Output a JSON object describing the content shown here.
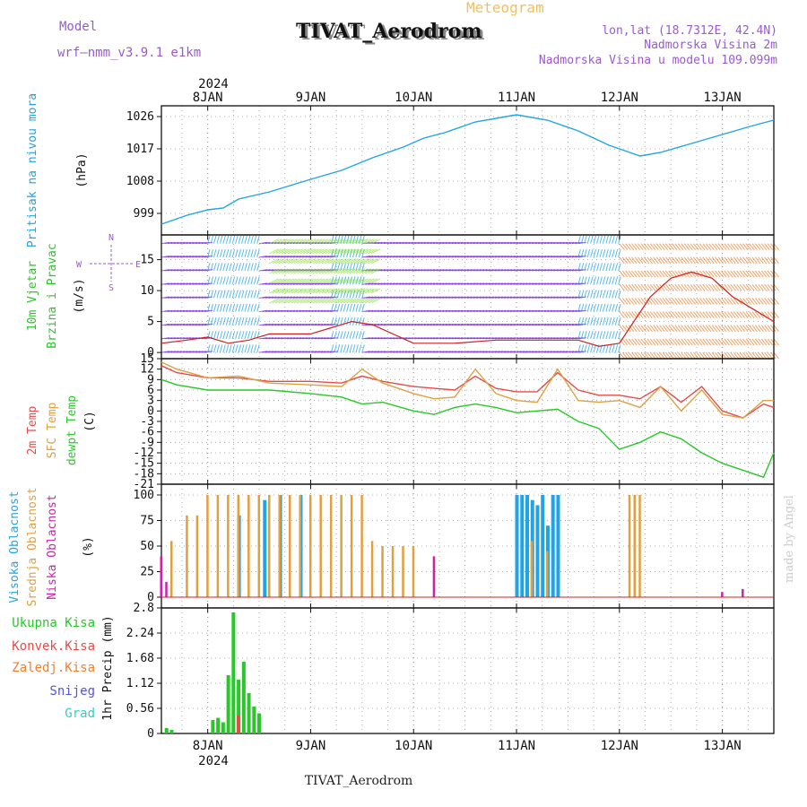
{
  "header": {
    "model_label": "Model",
    "model_value": "wrf–nmm_v3.9.1 e1km",
    "title": "TIVAT_Aerodrom",
    "meteogram": "Meteogram",
    "lonlat": "lon,lat (18.7312E, 42.4N)",
    "elevation": "Nadmorska Visina 2m",
    "model_elevation": "Nadmorska Visina u modelu 109.099m",
    "watermark": "made by Angel",
    "footer": "TIVAT_Aerodrom",
    "year_top": "2024",
    "year_bottom": "2024"
  },
  "colors": {
    "pressure": "#22a3e6",
    "t2m": "#e84a4a",
    "sfc": "#e0a040",
    "dew": "#28c828",
    "high_cloud": "#22a3e6",
    "mid_cloud": "#e0a040",
    "low_cloud": "#cc22aa",
    "precip_total": "#28c828",
    "precip_conv": "#e84a4a",
    "wind_purple": "#8a2be2"
  },
  "x_axis": {
    "ticks": [
      "8JAN",
      "9JAN",
      "10JAN",
      "11JAN",
      "12JAN",
      "13JAN"
    ],
    "start_day": 7.55,
    "end_day": 13.5
  },
  "panels": {
    "pressure": {
      "labels": [
        "Pritisak na nivou mora",
        "(hPa)"
      ],
      "ticks": [
        "999",
        "1008",
        "1017",
        "1026"
      ]
    },
    "wind": {
      "labels": [
        "10m Vjetar",
        "Brzina i Pravac",
        "(m/s)"
      ],
      "ticks": [
        "0",
        "5",
        "10",
        "15"
      ],
      "compass": [
        "N",
        "E",
        "S",
        "W"
      ]
    },
    "temp": {
      "labels": [
        "2m Temp",
        "SFC Temp",
        "dewpt Temp",
        "(C)"
      ],
      "ticks": [
        "15",
        "12",
        "9",
        "6",
        "3",
        "0",
        "-3",
        "-6",
        "-9",
        "-12",
        "-15",
        "-18",
        "-21"
      ]
    },
    "cloud": {
      "labels": [
        "Visoka Oblacnost",
        "Srednja Oblacnost",
        "Niska Oblacnost",
        "(%)"
      ],
      "ticks": [
        "0",
        "25",
        "50",
        "75",
        "100"
      ]
    },
    "precip": {
      "labels": [
        "Ukupna Kisa",
        "Konvek.Kisa",
        "Zaledj.Kisa",
        "Snijeg",
        "Grad",
        "1hr Precip (mm)"
      ],
      "ticks": [
        "0",
        "0.56",
        "1.12",
        "1.68",
        "2.24",
        "2.8"
      ]
    }
  },
  "chart_data": [
    {
      "type": "line",
      "title": "Pritisak na nivou mora",
      "ylabel": "(hPa)",
      "ylim": [
        993,
        1029
      ],
      "series": [
        {
          "name": "Pritisak na nivou mora",
          "x": [
            7.55,
            7.8,
            8.0,
            8.15,
            8.3,
            8.6,
            9.0,
            9.3,
            9.6,
            9.9,
            10.1,
            10.3,
            10.6,
            10.9,
            11.0,
            11.3,
            11.6,
            11.9,
            12.1,
            12.2,
            12.4,
            12.7,
            13.0,
            13.3,
            13.5
          ],
          "values": [
            996,
            998.5,
            1000,
            1000.5,
            1003,
            1005,
            1008.5,
            1011,
            1014.5,
            1017.5,
            1020,
            1021.5,
            1024.5,
            1026,
            1026.5,
            1025,
            1022,
            1018,
            1016,
            1015,
            1016,
            1018.5,
            1021,
            1023.5,
            1025
          ]
        }
      ]
    },
    {
      "type": "line",
      "title": "10m Vjetar Brzina i Pravac",
      "ylabel": "(m/s)",
      "ylim": [
        -1,
        19
      ],
      "series": [
        {
          "name": "10m Vjetar",
          "x": [
            7.55,
            7.8,
            8.0,
            8.2,
            8.4,
            8.6,
            9.0,
            9.2,
            9.4,
            9.6,
            10.0,
            10.4,
            10.8,
            11.2,
            11.6,
            11.8,
            12.0,
            12.1,
            12.3,
            12.5,
            12.7,
            12.9,
            13.1,
            13.3,
            13.5
          ],
          "values": [
            1.5,
            2,
            2.5,
            1.5,
            2,
            3,
            3,
            4,
            5,
            4.5,
            1.5,
            1.5,
            2,
            2,
            2,
            1,
            1.5,
            4,
            9,
            12,
            13,
            12,
            9,
            7,
            5
          ]
        }
      ]
    },
    {
      "type": "line",
      "title": "Temperature",
      "ylabel": "(C)",
      "ylim": [
        -21,
        15
      ],
      "series": [
        {
          "name": "2m Temp",
          "x": [
            7.55,
            7.7,
            8.0,
            8.3,
            8.6,
            9.0,
            9.3,
            9.5,
            9.7,
            10.0,
            10.2,
            10.4,
            10.6,
            10.8,
            11.0,
            11.2,
            11.4,
            11.6,
            11.8,
            12.0,
            12.2,
            12.4,
            12.6,
            12.8,
            13.0,
            13.2,
            13.4,
            13.5
          ],
          "values": [
            13,
            11,
            9.5,
            9.5,
            8.5,
            8.5,
            8,
            10,
            8.5,
            7,
            6.5,
            6,
            10,
            6.5,
            5.5,
            5.5,
            11,
            6,
            4.5,
            4.5,
            3.5,
            7,
            2.5,
            7,
            0,
            -2,
            2,
            1
          ]
        },
        {
          "name": "SFC Temp",
          "x": [
            7.55,
            7.7,
            8.0,
            8.3,
            8.6,
            9.0,
            9.3,
            9.5,
            9.7,
            10.0,
            10.2,
            10.4,
            10.6,
            10.8,
            11.0,
            11.2,
            11.4,
            11.6,
            11.8,
            12.0,
            12.2,
            12.4,
            12.6,
            12.8,
            13.0,
            13.2,
            13.4,
            13.5
          ],
          "values": [
            14,
            12,
            9.5,
            10,
            8,
            7.5,
            7,
            12,
            8,
            5,
            3.5,
            4,
            12,
            5,
            3,
            2.5,
            12,
            3,
            2.5,
            3,
            1,
            7,
            0,
            6,
            -1,
            -2,
            3,
            3
          ]
        },
        {
          "name": "dewpt Temp",
          "x": [
            7.55,
            7.7,
            8.0,
            8.3,
            8.6,
            9.0,
            9.3,
            9.5,
            9.7,
            10.0,
            10.2,
            10.4,
            10.6,
            10.8,
            11.0,
            11.2,
            11.4,
            11.6,
            11.8,
            12.0,
            12.2,
            12.4,
            12.6,
            12.8,
            13.0,
            13.2,
            13.4,
            13.5
          ],
          "values": [
            9,
            7.5,
            6,
            6,
            6,
            5,
            4,
            2,
            2.5,
            0,
            -1,
            1,
            2,
            1,
            -0.5,
            0,
            0.5,
            -3,
            -5,
            -11,
            -9,
            -6,
            -8,
            -12,
            -15,
            -17,
            -19,
            -12
          ]
        }
      ]
    },
    {
      "type": "bar",
      "title": "Oblacnost",
      "ylabel": "(%)",
      "ylim": [
        0,
        100
      ],
      "series": [
        {
          "name": "Visoka Oblacnost",
          "x": [
            8.3,
            8.55,
            8.7,
            8.9,
            11.0,
            11.05,
            11.1,
            11.15,
            11.2,
            11.25,
            11.3,
            11.35,
            11.4
          ],
          "values": [
            80,
            95,
            100,
            100,
            100,
            100,
            100,
            95,
            90,
            100,
            70,
            100,
            100
          ]
        },
        {
          "name": "Srednja Oblacnost",
          "x": [
            7.65,
            7.8,
            7.9,
            8.0,
            8.1,
            8.2,
            8.3,
            8.4,
            8.5,
            8.6,
            8.7,
            8.8,
            8.9,
            9.0,
            9.1,
            9.2,
            9.3,
            9.4,
            9.5,
            9.6,
            9.7,
            9.8,
            9.9,
            10.0,
            11.15,
            11.3,
            12.1,
            12.15,
            12.2
          ],
          "values": [
            55,
            80,
            80,
            100,
            100,
            100,
            100,
            100,
            100,
            100,
            100,
            100,
            100,
            100,
            100,
            100,
            100,
            100,
            100,
            55,
            50,
            50,
            50,
            50,
            55,
            45,
            100,
            100,
            100
          ]
        },
        {
          "name": "Niska Oblacnost",
          "x": [
            7.55,
            7.6,
            10.2,
            13.0,
            13.2
          ],
          "values": [
            40,
            15,
            40,
            5,
            8
          ]
        }
      ]
    },
    {
      "type": "bar",
      "title": "1hr Precip",
      "ylabel": "1hr Precip (mm)",
      "ylim": [
        0,
        2.8
      ],
      "series": [
        {
          "name": "Ukupna Kisa",
          "x": [
            7.6,
            7.65,
            8.05,
            8.1,
            8.15,
            8.2,
            8.25,
            8.3,
            8.35,
            8.4,
            8.45,
            8.5
          ],
          "values": [
            0.12,
            0.08,
            0.3,
            0.35,
            0.25,
            1.3,
            2.7,
            1.2,
            1.6,
            0.9,
            0.6,
            0.45
          ]
        },
        {
          "name": "Konvek.Kisa",
          "x": [
            8.3
          ],
          "values": [
            0.4
          ]
        }
      ]
    }
  ]
}
